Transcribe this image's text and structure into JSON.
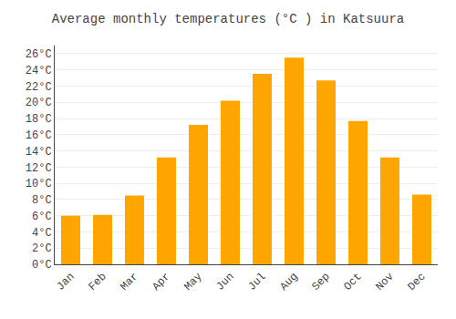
{
  "chart_data": {
    "type": "bar",
    "title": "Average monthly temperatures (°C ) in Katsuura",
    "categories": [
      "Jan",
      "Feb",
      "Mar",
      "Apr",
      "May",
      "Jun",
      "Jul",
      "Aug",
      "Sep",
      "Oct",
      "Nov",
      "Dec"
    ],
    "values": [
      6.0,
      6.1,
      8.5,
      13.2,
      17.2,
      20.2,
      23.5,
      25.5,
      22.7,
      17.7,
      13.2,
      8.6
    ],
    "color": "#FFA500",
    "ylim": [
      0,
      27
    ],
    "yticks": [
      {
        "value": 0,
        "label": "0°C"
      },
      {
        "value": 2,
        "label": "2°C"
      },
      {
        "value": 4,
        "label": "4°C"
      },
      {
        "value": 6,
        "label": "6°C"
      },
      {
        "value": 8,
        "label": "8°C"
      },
      {
        "value": 10,
        "label": "10°C"
      },
      {
        "value": 12,
        "label": "12°C"
      },
      {
        "value": 14,
        "label": "14°C"
      },
      {
        "value": 16,
        "label": "16°C"
      },
      {
        "value": 18,
        "label": "18°C"
      },
      {
        "value": 20,
        "label": "20°C"
      },
      {
        "value": 22,
        "label": "22°C"
      },
      {
        "value": 24,
        "label": "24°C"
      },
      {
        "value": 26,
        "label": "26°C"
      }
    ],
    "grid": true
  }
}
